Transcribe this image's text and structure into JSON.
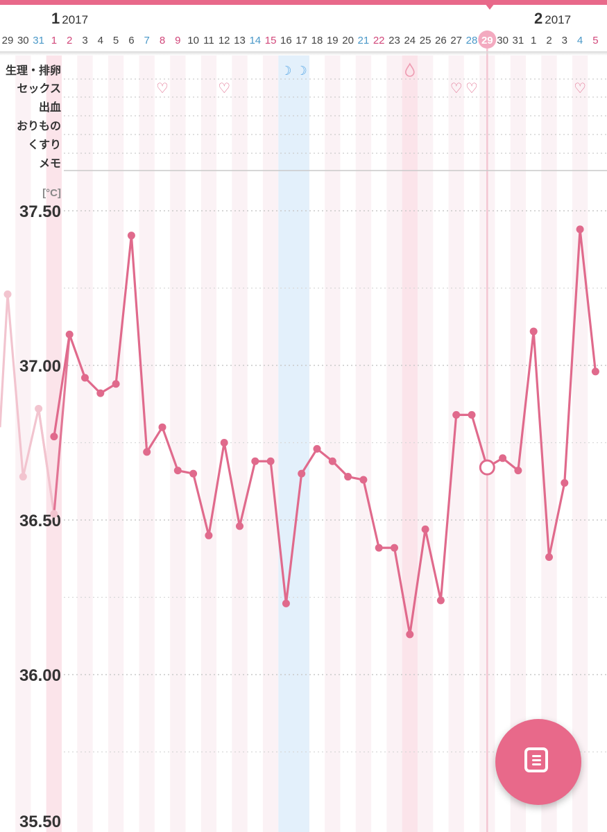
{
  "header": {
    "months": [
      {
        "month": "1",
        "year": "2017"
      },
      {
        "month": "2",
        "year": "2017"
      }
    ],
    "days": [
      {
        "label": "29",
        "color": "#444444"
      },
      {
        "label": "30",
        "color": "#444444"
      },
      {
        "label": "31",
        "color": "#4a98c8"
      },
      {
        "label": "1",
        "color": "#d1477a"
      },
      {
        "label": "2",
        "color": "#d1477a"
      },
      {
        "label": "3",
        "color": "#444444"
      },
      {
        "label": "4",
        "color": "#444444"
      },
      {
        "label": "5",
        "color": "#444444"
      },
      {
        "label": "6",
        "color": "#444444"
      },
      {
        "label": "7",
        "color": "#4a98c8"
      },
      {
        "label": "8",
        "color": "#d1477a"
      },
      {
        "label": "9",
        "color": "#d1477a"
      },
      {
        "label": "10",
        "color": "#444444"
      },
      {
        "label": "11",
        "color": "#444444"
      },
      {
        "label": "12",
        "color": "#444444"
      },
      {
        "label": "13",
        "color": "#444444"
      },
      {
        "label": "14",
        "color": "#4a98c8"
      },
      {
        "label": "15",
        "color": "#d1477a"
      },
      {
        "label": "16",
        "color": "#444444"
      },
      {
        "label": "17",
        "color": "#444444"
      },
      {
        "label": "18",
        "color": "#444444"
      },
      {
        "label": "19",
        "color": "#444444"
      },
      {
        "label": "20",
        "color": "#444444"
      },
      {
        "label": "21",
        "color": "#4a98c8"
      },
      {
        "label": "22",
        "color": "#d1477a"
      },
      {
        "label": "23",
        "color": "#444444"
      },
      {
        "label": "24",
        "color": "#444444"
      },
      {
        "label": "25",
        "color": "#444444"
      },
      {
        "label": "26",
        "color": "#444444"
      },
      {
        "label": "27",
        "color": "#444444"
      },
      {
        "label": "28",
        "color": "#4a98c8"
      },
      {
        "label": "29",
        "color": "#ffffff"
      },
      {
        "label": "30",
        "color": "#444444"
      },
      {
        "label": "31",
        "color": "#444444"
      },
      {
        "label": "1",
        "color": "#444444"
      },
      {
        "label": "2",
        "color": "#444444"
      },
      {
        "label": "3",
        "color": "#444444"
      },
      {
        "label": "4",
        "color": "#4a98c8"
      },
      {
        "label": "5",
        "color": "#d1477a"
      }
    ],
    "today_label": "29"
  },
  "rows": [
    {
      "label": "生理・排卵"
    },
    {
      "label": "セックス"
    },
    {
      "label": "出血"
    },
    {
      "label": "おりもの"
    },
    {
      "label": "くすり"
    },
    {
      "label": "メモ"
    }
  ],
  "markers": {
    "ovulation_days": [
      "16",
      "17"
    ],
    "ovulation_symbol": "☽",
    "menstruation_days": [
      "24"
    ],
    "menstruation_symbol": "drop-icon",
    "sex_days": [
      "8",
      "12",
      "27",
      "28",
      "4"
    ],
    "sex_symbol": "♡"
  },
  "chart_data": {
    "type": "line",
    "title": "",
    "xlabel": "",
    "ylabel": "[°C]",
    "ylim": [
      35.5,
      37.6
    ],
    "y_tick_labels": [
      "37.50",
      "37.00",
      "36.50",
      "36.00",
      "35.50"
    ],
    "x": [
      "29",
      "30",
      "31",
      "1",
      "2",
      "3",
      "4",
      "5",
      "6",
      "7",
      "8",
      "9",
      "10",
      "11",
      "12",
      "13",
      "14",
      "15",
      "16",
      "17",
      "18",
      "19",
      "20",
      "21",
      "22",
      "23",
      "24",
      "25",
      "26",
      "27",
      "28",
      "29",
      "30",
      "31",
      "1",
      "2",
      "3",
      "4",
      "5"
    ],
    "series": [
      {
        "cycle": "previous",
        "color": "#f2c4cf",
        "values": [
          37.23,
          36.64,
          36.86,
          36.52,
          null,
          null,
          null,
          null,
          null,
          null,
          null,
          null,
          null,
          null,
          null,
          null,
          null,
          null,
          null,
          null,
          null,
          null,
          null,
          null,
          null,
          null,
          null,
          null,
          null,
          null,
          null,
          null,
          null,
          null,
          null,
          null,
          null,
          null,
          null
        ]
      },
      {
        "cycle": "current",
        "color": "#e06a8c",
        "values": [
          null,
          null,
          null,
          36.77,
          37.1,
          36.96,
          36.91,
          36.94,
          37.42,
          36.72,
          36.8,
          36.66,
          36.65,
          36.45,
          36.75,
          36.48,
          36.69,
          36.69,
          36.23,
          36.65,
          36.73,
          36.69,
          36.64,
          36.63,
          36.41,
          36.41,
          36.13,
          36.47,
          36.24,
          36.84,
          36.84,
          null,
          36.7,
          36.66,
          37.11,
          36.38,
          36.62,
          37.44,
          36.98
        ]
      }
    ],
    "today": {
      "date": "29",
      "value": 36.67
    },
    "bands": {
      "menstruation": [
        "1",
        "24"
      ],
      "ovulation": [
        "16",
        "17"
      ]
    },
    "grid": true,
    "legend": "none"
  },
  "fab": {
    "icon": "note-icon"
  }
}
